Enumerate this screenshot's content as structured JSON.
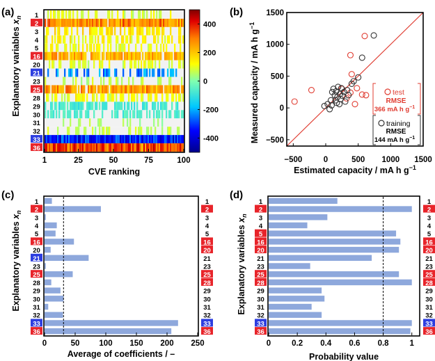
{
  "panels": {
    "a": {
      "letter": "(a)"
    },
    "b": {
      "letter": "(b)"
    },
    "c": {
      "letter": "(c)"
    },
    "d": {
      "letter": "(d)"
    }
  },
  "chart_data": [
    {
      "id": "a",
      "type": "heatmap",
      "xlabel": "CVE ranking",
      "ylabel_main": "Explanatory variables ",
      "ylabel_var": "x",
      "ylabel_sub": "n",
      "xticks": [
        1,
        25,
        50,
        75,
        100
      ],
      "xlim": [
        1,
        100
      ],
      "rows": [
        {
          "label": "1",
          "highlight": null
        },
        {
          "label": "2",
          "highlight": "red"
        },
        {
          "label": "3",
          "highlight": null
        },
        {
          "label": "4",
          "highlight": null
        },
        {
          "label": "5",
          "highlight": null
        },
        {
          "label": "16",
          "highlight": "red"
        },
        {
          "label": "20",
          "highlight": null
        },
        {
          "label": "21",
          "highlight": "blue"
        },
        {
          "label": "23",
          "highlight": null
        },
        {
          "label": "25",
          "highlight": "red"
        },
        {
          "label": "28",
          "highlight": null
        },
        {
          "label": "29",
          "highlight": null
        },
        {
          "label": "30",
          "highlight": null
        },
        {
          "label": "31",
          "highlight": null
        },
        {
          "label": "32",
          "highlight": null
        },
        {
          "label": "33",
          "highlight": "blue"
        },
        {
          "label": "36",
          "highlight": "red"
        }
      ],
      "row_patterns": [
        {
          "level": 120,
          "density": 0.35
        },
        {
          "level": 360,
          "density": 0.97
        },
        {
          "level": 200,
          "density": 0.55
        },
        {
          "level": 160,
          "density": 0.5
        },
        {
          "level": 140,
          "density": 0.45
        },
        {
          "level": 300,
          "density": 0.9
        },
        {
          "level": 120,
          "density": 0.4
        },
        {
          "level": -300,
          "density": 0.35
        },
        {
          "level": 80,
          "density": 0.2
        },
        {
          "level": 330,
          "density": 0.92
        },
        {
          "level": 140,
          "density": 0.55
        },
        {
          "level": -100,
          "density": 0.6
        },
        {
          "level": -80,
          "density": 0.55
        },
        {
          "level": 60,
          "density": 0.15
        },
        {
          "level": 80,
          "density": 0.3
        },
        {
          "level": -420,
          "density": 1.0
        },
        {
          "level": 440,
          "density": 1.0
        }
      ],
      "colorbar": {
        "min": -500,
        "max": 500,
        "ticks": [
          -400,
          -200,
          0,
          200,
          400
        ]
      }
    },
    {
      "id": "b",
      "type": "scatter",
      "xlabel": "Estimated capacity / mA h g",
      "ylabel": "Measured capacity / mA h g",
      "unit_sup": "−1",
      "xlim": [
        -600,
        1500
      ],
      "ylim": [
        -600,
        1500
      ],
      "xticks": [
        -500,
        0,
        500,
        1000,
        1500
      ],
      "yticks": [
        -500,
        0,
        500,
        1000,
        1500
      ],
      "legend": {
        "test": {
          "label": "test",
          "rmse_label": "RMSE",
          "rmse_value": "366 mA h g",
          "color": "#e03c31"
        },
        "training": {
          "label": "training",
          "rmse_label": "RMSE",
          "rmse_value": "144 mA h g",
          "color": "#333333"
        }
      },
      "series": [
        {
          "name": "test",
          "points": [
            [
              -480,
              100
            ],
            [
              -220,
              280
            ],
            [
              380,
              830
            ],
            [
              400,
              530
            ],
            [
              480,
              310
            ],
            [
              560,
              210
            ],
            [
              600,
              1130
            ],
            [
              620,
              200
            ],
            [
              380,
              240
            ],
            [
              320,
              150
            ],
            [
              450,
              60
            ],
            [
              250,
              300
            ]
          ]
        },
        {
          "name": "training",
          "points": [
            [
              -20,
              30
            ],
            [
              30,
              60
            ],
            [
              60,
              -20
            ],
            [
              80,
              120
            ],
            [
              90,
              40
            ],
            [
              100,
              250
            ],
            [
              120,
              300
            ],
            [
              140,
              200
            ],
            [
              150,
              120
            ],
            [
              160,
              260
            ],
            [
              170,
              80
            ],
            [
              180,
              170
            ],
            [
              190,
              330
            ],
            [
              210,
              60
            ],
            [
              220,
              220
            ],
            [
              230,
              140
            ],
            [
              240,
              310
            ],
            [
              260,
              190
            ],
            [
              280,
              250
            ],
            [
              300,
              100
            ],
            [
              330,
              280
            ],
            [
              350,
              200
            ],
            [
              400,
              380
            ],
            [
              430,
              420
            ],
            [
              500,
              480
            ],
            [
              560,
              790
            ],
            [
              740,
              1140
            ]
          ]
        }
      ],
      "line": {
        "from": [
          -600,
          -600
        ],
        "to": [
          1500,
          1500
        ],
        "color": "#e03c31"
      }
    },
    {
      "id": "c",
      "type": "bar",
      "xlabel": "Average of coefficients / –",
      "ylabel_main": "Explanatory variables ",
      "ylabel_var": "x",
      "ylabel_sub": "n",
      "categories": [
        "1",
        "2",
        "3",
        "4",
        "5",
        "16",
        "20",
        "21",
        "23",
        "25",
        "28",
        "29",
        "30",
        "31",
        "32",
        "33",
        "36"
      ],
      "highlights": [
        null,
        "red",
        null,
        null,
        null,
        "red",
        null,
        "blue",
        null,
        "red",
        null,
        null,
        null,
        null,
        null,
        "blue",
        "red"
      ],
      "right_highlights": [
        null,
        "red",
        null,
        null,
        null,
        "red",
        "red",
        null,
        null,
        "red",
        "red",
        null,
        null,
        null,
        null,
        "blue",
        "red"
      ],
      "values": [
        12,
        92,
        2,
        20,
        18,
        48,
        10,
        72,
        2,
        46,
        11,
        26,
        31,
        6,
        30,
        218,
        207
      ],
      "xlim": [
        0,
        250
      ],
      "xticks": [
        0,
        50,
        100,
        150,
        200,
        250
      ],
      "threshold": 31,
      "bar_color": "#8ea8dc"
    },
    {
      "id": "d",
      "type": "bar",
      "xlabel": "Probability value",
      "ylabel_main": "Explanatory variables ",
      "ylabel_var": "x",
      "ylabel_sub": "n",
      "categories": [
        "1",
        "2",
        "3",
        "4",
        "5",
        "16",
        "20",
        "21",
        "23",
        "25",
        "28",
        "29",
        "30",
        "31",
        "32",
        "33",
        "36"
      ],
      "highlights": [
        null,
        "red",
        null,
        null,
        "red",
        "red",
        "red",
        null,
        null,
        "red",
        "red",
        null,
        null,
        null,
        null,
        "blue",
        "red"
      ],
      "right_highlights": [
        null,
        "red",
        null,
        null,
        null,
        "red",
        "red",
        null,
        null,
        "red",
        "red",
        null,
        null,
        null,
        null,
        "blue",
        "red"
      ],
      "values": [
        0.48,
        1.0,
        0.41,
        0.27,
        0.89,
        0.92,
        0.91,
        0.72,
        0.29,
        0.91,
        1.0,
        0.37,
        0.39,
        0.3,
        0.37,
        1.0,
        0.99
      ],
      "xlim": [
        0,
        1.05
      ],
      "xticks": [
        0,
        0.2,
        0.4,
        0.6,
        0.8,
        1
      ],
      "threshold": 0.8,
      "bar_color": "#8ea8dc"
    }
  ]
}
